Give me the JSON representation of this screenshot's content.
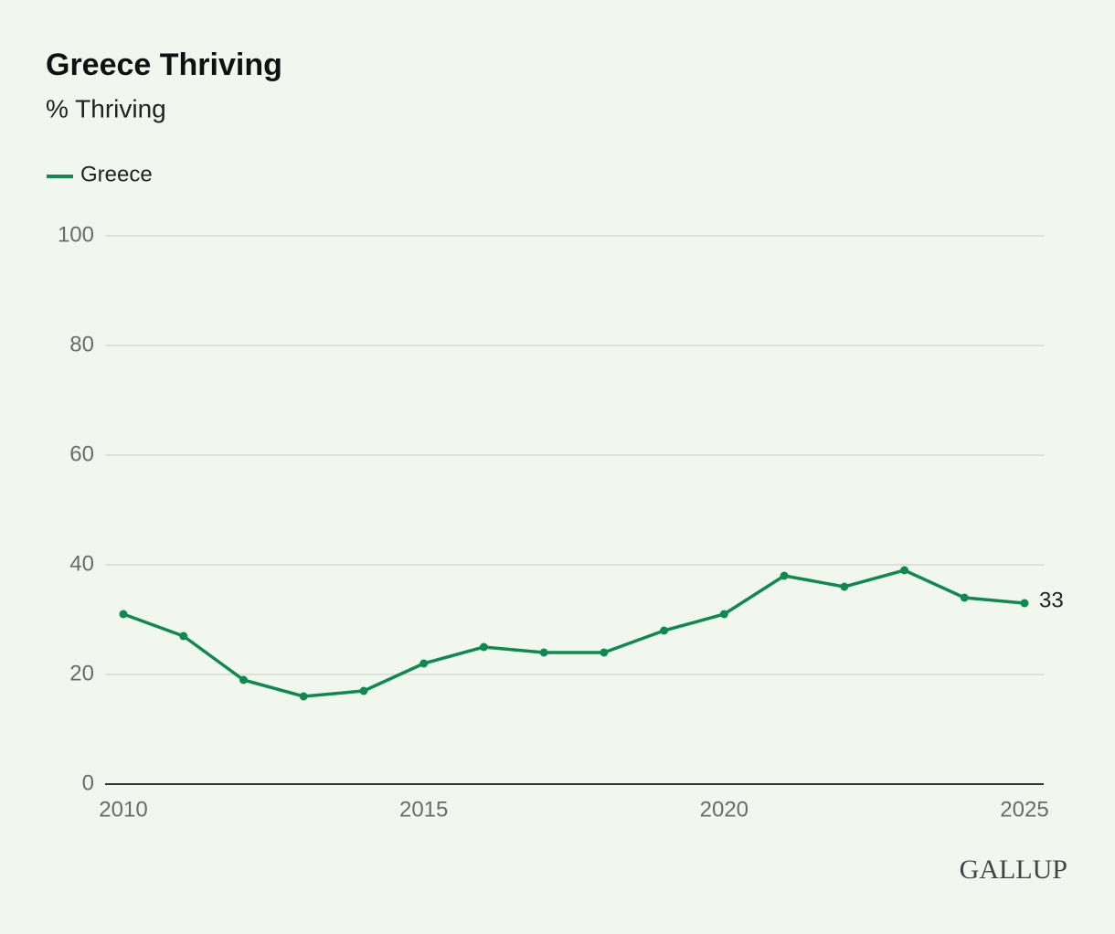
{
  "chart_data": {
    "type": "line",
    "title": "Greece Thriving",
    "subtitle": "% Thriving",
    "x": [
      2010,
      2011,
      2012,
      2013,
      2014,
      2015,
      2016,
      2017,
      2018,
      2019,
      2020,
      2021,
      2022,
      2023,
      2024,
      2025
    ],
    "series": [
      {
        "name": "Greece",
        "color": "#0e8a4f",
        "values": [
          31,
          27,
          19,
          16,
          17,
          22,
          25,
          24,
          24,
          28,
          31,
          38,
          36,
          39,
          34,
          33
        ]
      }
    ],
    "xlim": [
      2010,
      2025
    ],
    "xticks": [
      2010,
      2015,
      2020,
      2025
    ],
    "ylim": [
      0,
      100
    ],
    "yticks": [
      0,
      20,
      40,
      60,
      80,
      100
    ],
    "grid": true,
    "legend": "top-left",
    "branding": "GALLUP"
  }
}
